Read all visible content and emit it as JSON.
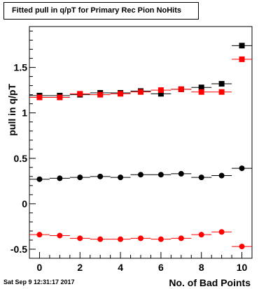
{
  "chart_data": {
    "type": "scatter",
    "title": "Fitted pull in q/pT for Primary Rec Pion NoHits",
    "xlabel": "No. of Bad Points",
    "ylabel": "pull in q/pT",
    "xlim": [
      -0.5,
      10.5
    ],
    "ylim": [
      -0.6,
      1.95
    ],
    "x_ticks": [
      0,
      2,
      4,
      6,
      8,
      10
    ],
    "y_ticks": [
      {
        "v": -0.5,
        "label": "-0.5"
      },
      {
        "v": 0,
        "label": "0"
      },
      {
        "v": 0.5,
        "label": "0.5"
      },
      {
        "v": 1,
        "label": "1"
      },
      {
        "v": 1.5,
        "label": "1.5"
      }
    ],
    "grid": false,
    "x_error": 0.5,
    "series": [
      {
        "marker": "square",
        "color": "#000000",
        "x": [
          0,
          1,
          2,
          3,
          4,
          5,
          6,
          7,
          8,
          9,
          10
        ],
        "y": [
          1.19,
          1.19,
          1.2,
          1.22,
          1.22,
          1.24,
          1.21,
          1.26,
          1.28,
          1.32,
          1.74
        ]
      },
      {
        "marker": "square",
        "color": "#ff0000",
        "x": [
          0,
          1,
          2,
          3,
          4,
          5,
          6,
          7,
          8,
          9,
          10
        ],
        "y": [
          1.17,
          1.17,
          1.21,
          1.2,
          1.21,
          1.23,
          1.25,
          1.26,
          1.23,
          1.23,
          1.59
        ]
      },
      {
        "marker": "circle",
        "color": "#000000",
        "x": [
          0,
          1,
          2,
          3,
          4,
          5,
          6,
          7,
          8,
          9,
          10
        ],
        "y": [
          0.27,
          0.28,
          0.29,
          0.3,
          0.29,
          0.32,
          0.32,
          0.33,
          0.29,
          0.31,
          0.39
        ]
      },
      {
        "marker": "circle",
        "color": "#ff0000",
        "x": [
          0,
          1,
          2,
          3,
          4,
          5,
          6,
          7,
          8,
          9,
          10
        ],
        "y": [
          -0.34,
          -0.35,
          -0.38,
          -0.39,
          -0.39,
          -0.38,
          -0.39,
          -0.38,
          -0.34,
          -0.31,
          -0.47
        ]
      }
    ]
  },
  "footer": {
    "timestamp": "Sat Sep  9 12:31:17 2017"
  }
}
